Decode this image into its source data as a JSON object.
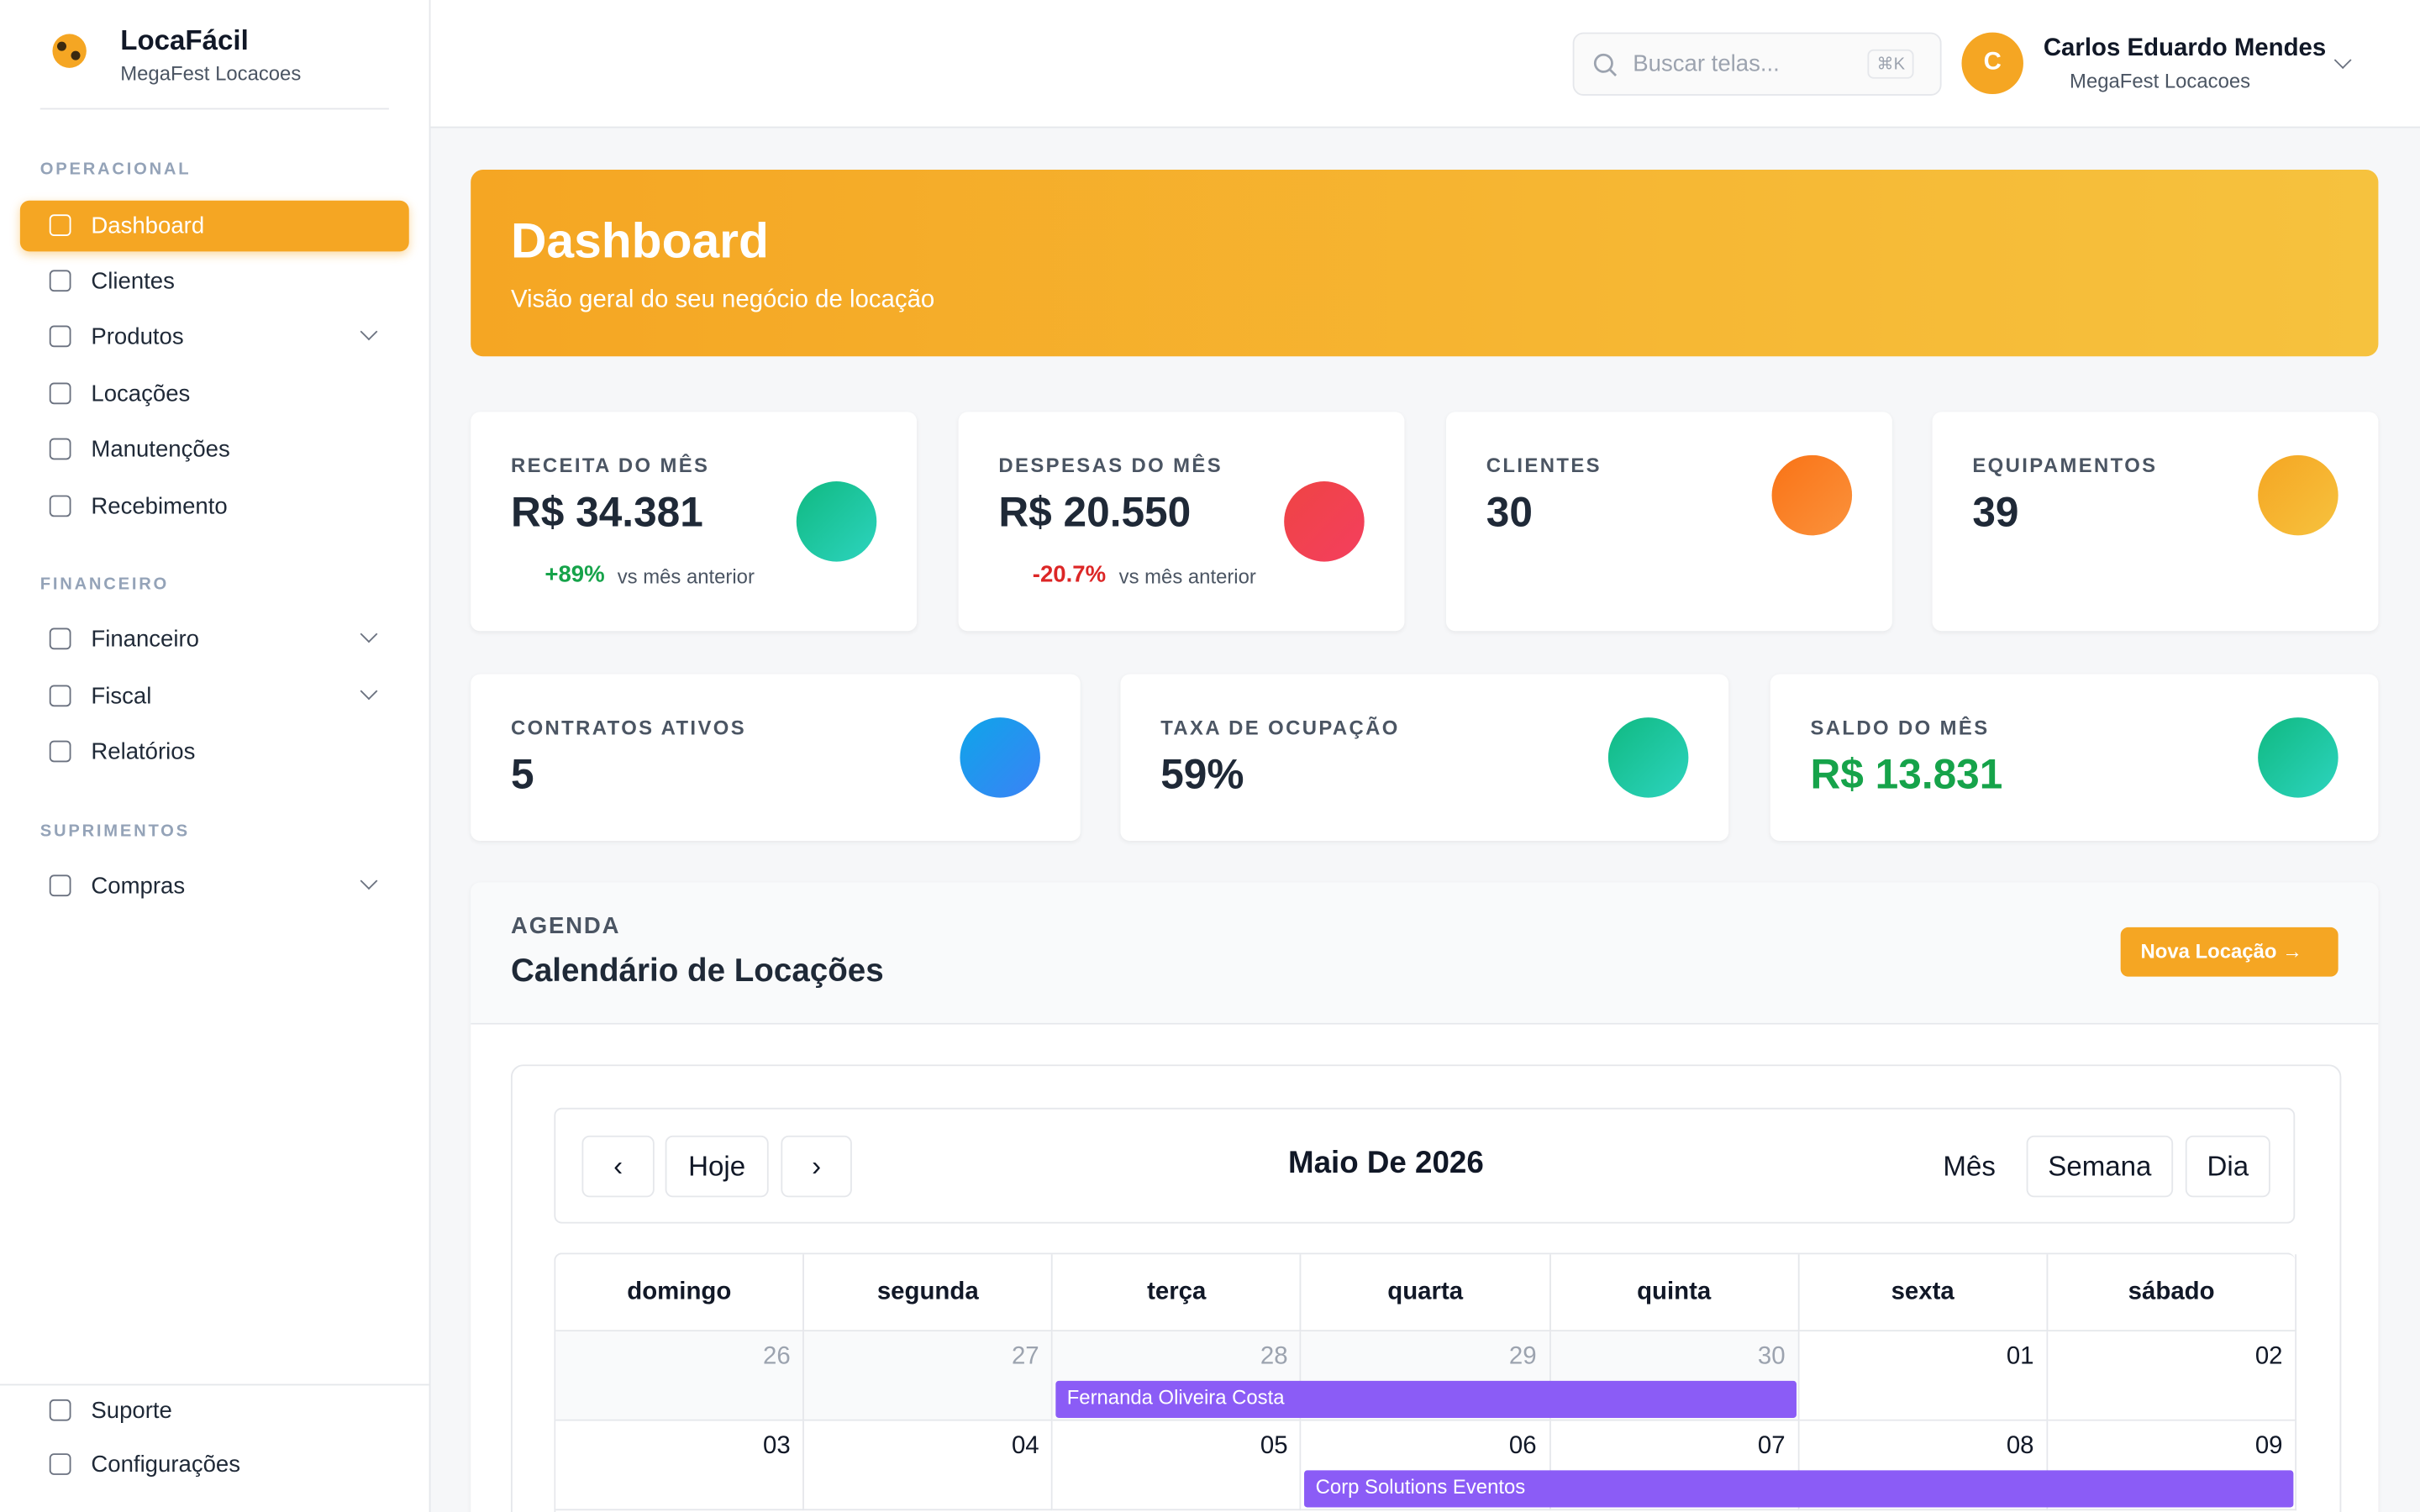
{
  "sidebar": {
    "brand": "LocaFácil",
    "company": "MegaFest Locacoes",
    "sections": [
      {
        "title": "OPERACIONAL",
        "items": [
          {
            "label": "Dashboard"
          },
          {
            "label": "Clientes"
          },
          {
            "label": "Produtos"
          },
          {
            "label": "Locações"
          },
          {
            "label": "Manutenções"
          },
          {
            "label": "Recebimento"
          }
        ]
      },
      {
        "title": "FINANCEIRO",
        "items": [
          {
            "label": "Financeiro"
          },
          {
            "label": "Fiscal"
          },
          {
            "label": "Relatórios"
          }
        ]
      },
      {
        "title": "SUPRIMENTOS",
        "items": [
          {
            "label": "Compras"
          }
        ]
      }
    ],
    "footer": [
      {
        "label": "Suporte"
      },
      {
        "label": "Configurações"
      }
    ]
  },
  "topbar": {
    "search": "Buscar telas...",
    "shortcut": "⌘K",
    "avatar": "C",
    "user": "Carlos Eduardo Mendes",
    "company": "MegaFest Locacoes"
  },
  "banner": {
    "title": "Dashboard",
    "subtitle": "Visão geral do seu negócio de locação"
  },
  "cards": [
    {
      "label": "RECEITA DO MÊS",
      "value": "R$ 34.381",
      "change": "+89%",
      "note": "vs mês anterior"
    },
    {
      "label": "DESPESAS DO MÊS",
      "value": "R$ 20.550",
      "change": "-20.7%",
      "note": "vs mês anterior"
    },
    {
      "label": "CLIENTES",
      "value": "30"
    },
    {
      "label": "EQUIPAMENTOS",
      "value": "39"
    },
    {
      "label": "CONTRATOS ATIVOS",
      "value": "5"
    },
    {
      "label": "TAXA DE OCUPAÇÃO",
      "value": "59%"
    },
    {
      "label": "SALDO DO MÊS",
      "value": "R$ 13.831"
    }
  ],
  "agenda": {
    "eyebrow": "AGENDA",
    "title": "Calendário de Locações",
    "button": "Nova Locação",
    "calendar": {
      "prev": "‹",
      "today": "Hoje",
      "next": "›",
      "title": "Maio De 2026",
      "views": [
        "Mês",
        "Semana",
        "Dia"
      ],
      "weekdays": [
        "domingo",
        "segunda",
        "terça",
        "quarta",
        "quinta",
        "sexta",
        "sábado"
      ],
      "weeks": [
        [
          "26",
          "27",
          "28",
          "29",
          "30",
          "01",
          "02"
        ],
        [
          "03",
          "04",
          "05",
          "06",
          "07",
          "08",
          "09"
        ]
      ],
      "events": [
        {
          "title": "Fernanda Oliveira Costa"
        },
        {
          "title": "Corp Solutions Eventos"
        }
      ]
    }
  }
}
